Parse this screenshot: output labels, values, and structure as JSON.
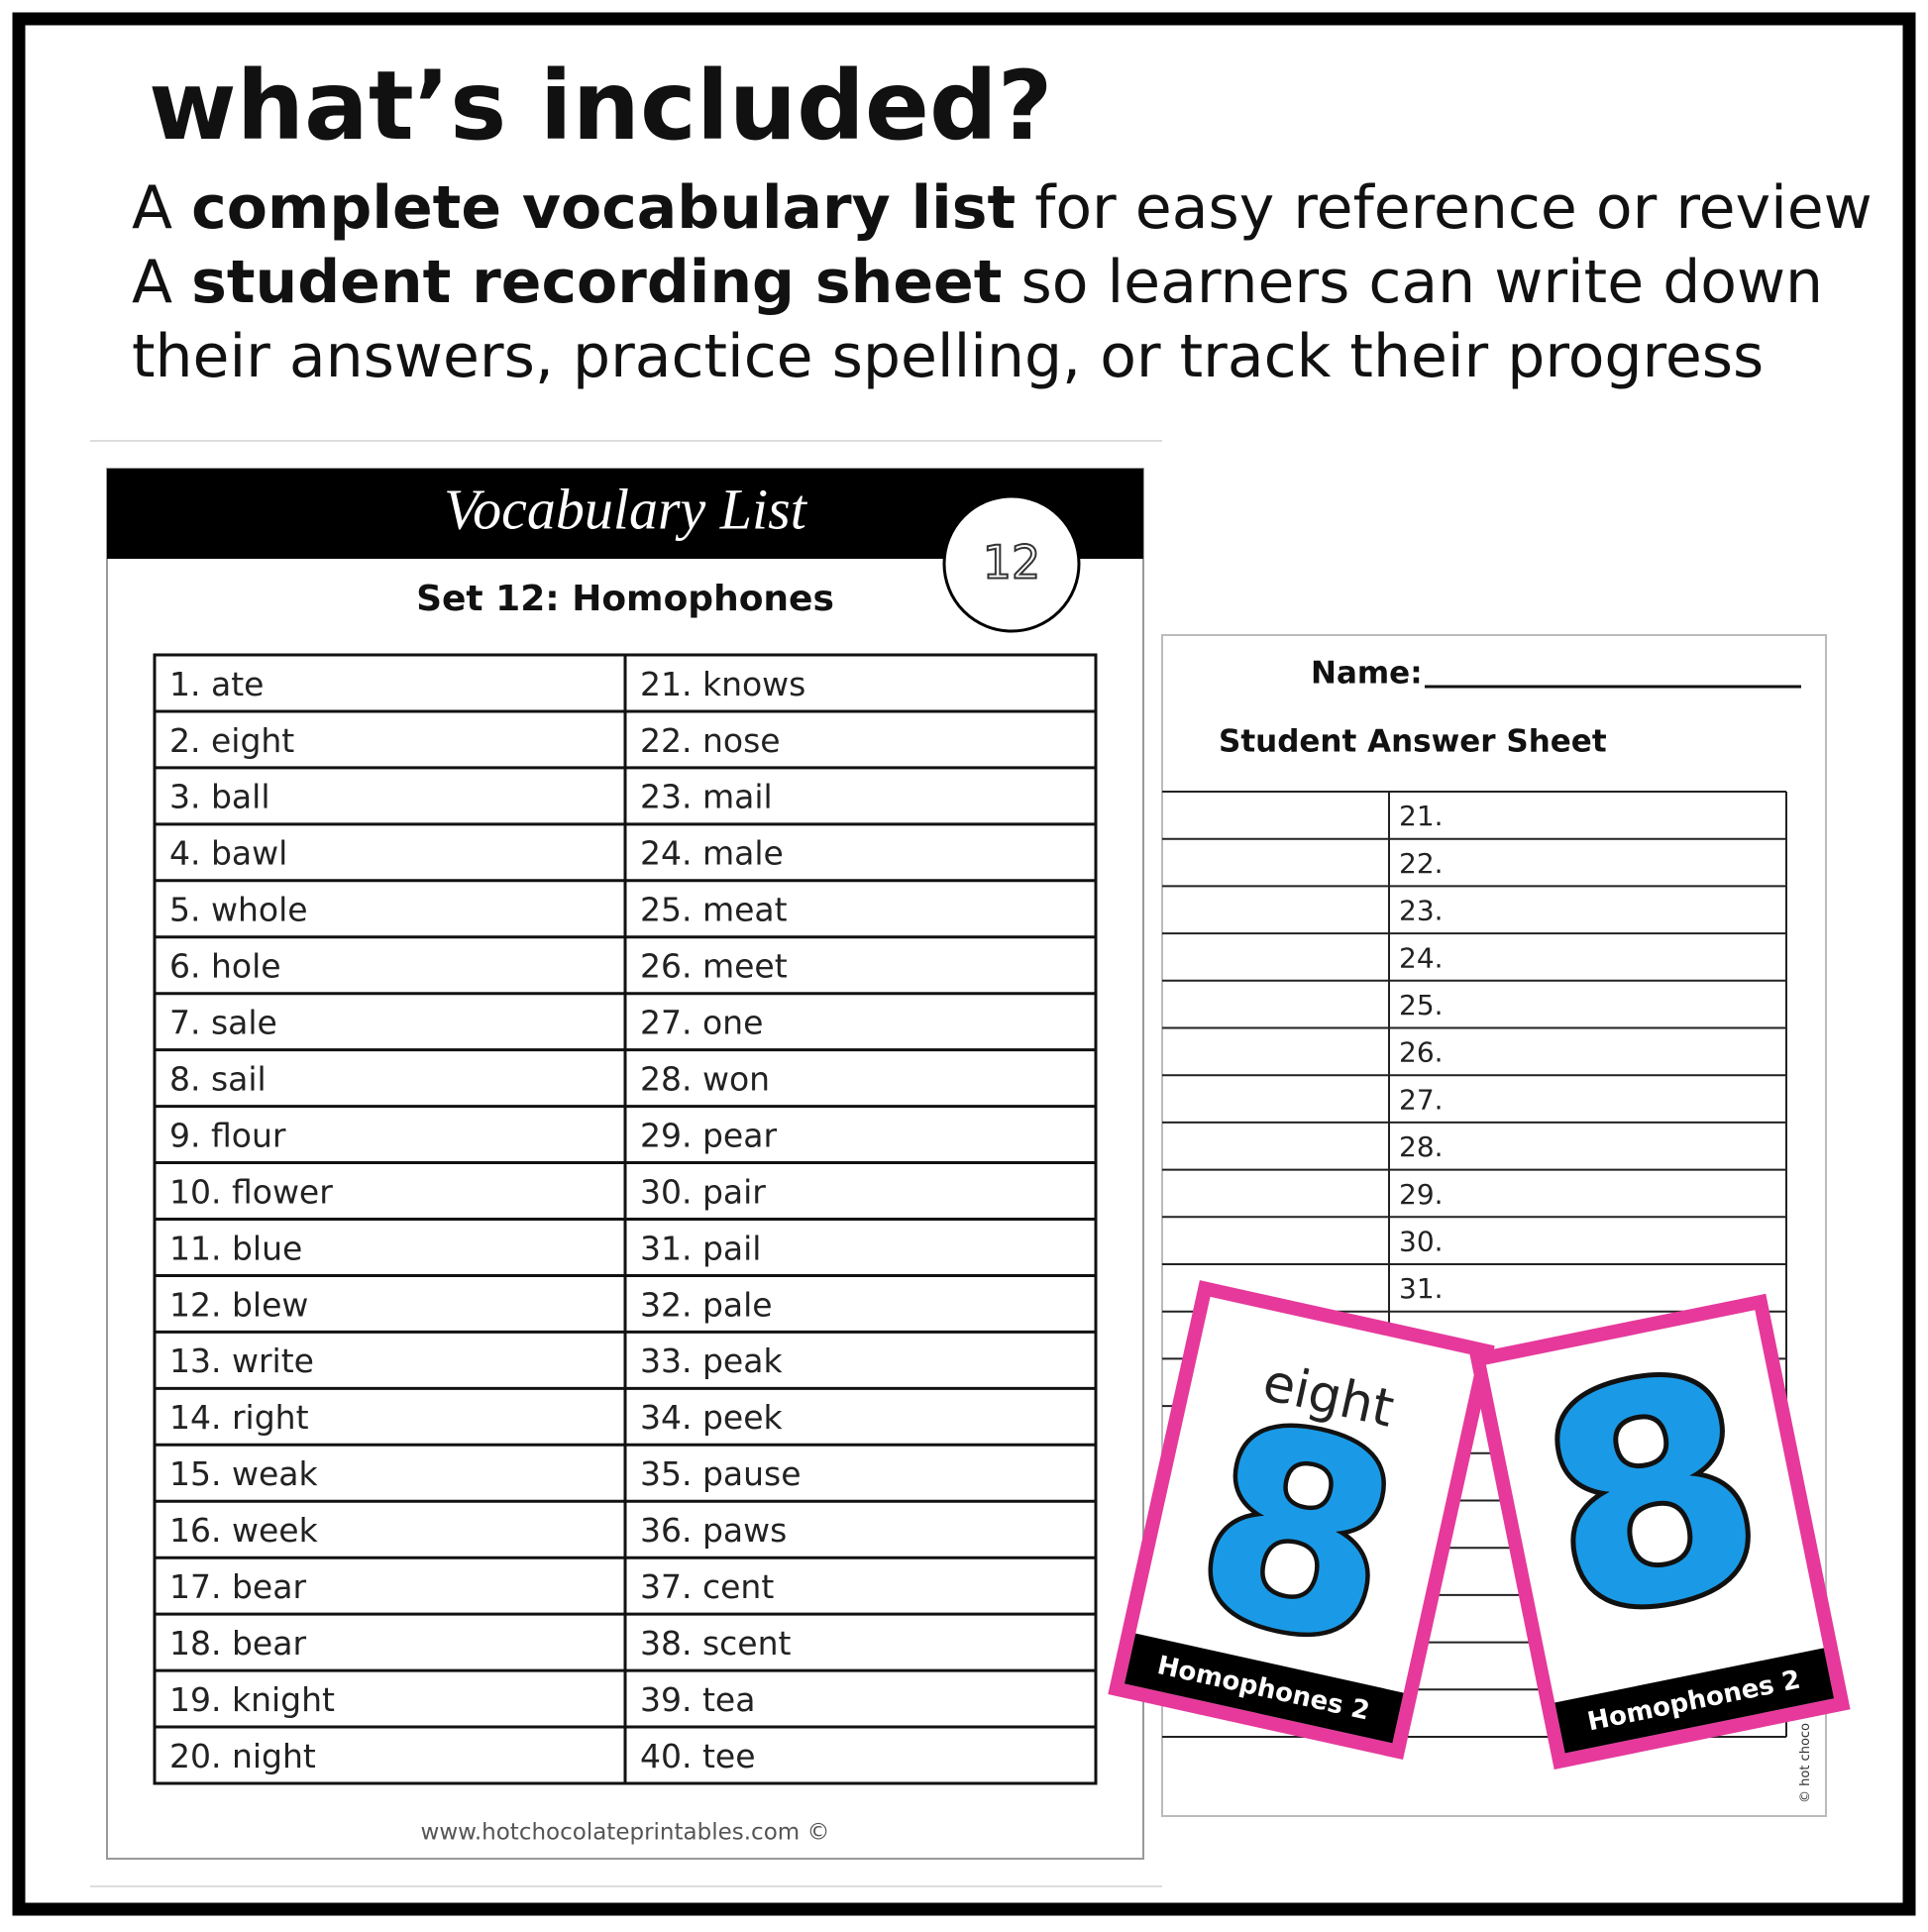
{
  "header": {
    "title": "what’s included?",
    "lines": [
      {
        "before": "A ",
        "bold": "complete vocabulary list",
        "after": " for easy reference or review"
      },
      {
        "before": "A ",
        "bold": "student recording sheet",
        "after": " so learners can write down"
      },
      {
        "before": "their answers, practice spelling, or track their progress"
      }
    ]
  },
  "vocab_sheet": {
    "title": "Vocabulary List",
    "badge": "12",
    "subtitle": "Set 12: Homophones",
    "rows": [
      [
        "1.  ate",
        "21. knows"
      ],
      [
        "2.  eight",
        "22. nose"
      ],
      [
        "3. ball",
        "23. mail"
      ],
      [
        "4. bawl",
        "24. male"
      ],
      [
        "5. whole",
        "25. meat"
      ],
      [
        "6. hole",
        "26. meet"
      ],
      [
        "7. sale",
        "27. one"
      ],
      [
        "8. sail",
        "28. won"
      ],
      [
        "9. flour",
        "29. pear"
      ],
      [
        "10. flower",
        "30. pair"
      ],
      [
        "11. blue",
        "31. pail"
      ],
      [
        "12. blew",
        "32. pale"
      ],
      [
        "13. write",
        "33. peak"
      ],
      [
        "14. right",
        "34. peek"
      ],
      [
        "15. weak",
        "35. pause"
      ],
      [
        "16. week",
        "36. paws"
      ],
      [
        "17. bear",
        "37. cent"
      ],
      [
        "18. bear",
        "38. scent"
      ],
      [
        "19. knight",
        "39. tea"
      ],
      [
        "20. night",
        "40. tee"
      ]
    ],
    "footer": "www.hotchocolateprintables.com ©"
  },
  "answer_sheet": {
    "name_label": "Name:",
    "title": "Student Answer Sheet",
    "rows": [
      "21.",
      "22.",
      "23.",
      "24.",
      "25.",
      "26.",
      "27.",
      "28.",
      "29.",
      "30.",
      "31."
    ],
    "side_credit": "© hot choco"
  },
  "cards": [
    {
      "word": "eight",
      "numeral": "8",
      "label": "Homophones 2"
    },
    {
      "numeral": "8",
      "label": "Homophones 2"
    }
  ]
}
